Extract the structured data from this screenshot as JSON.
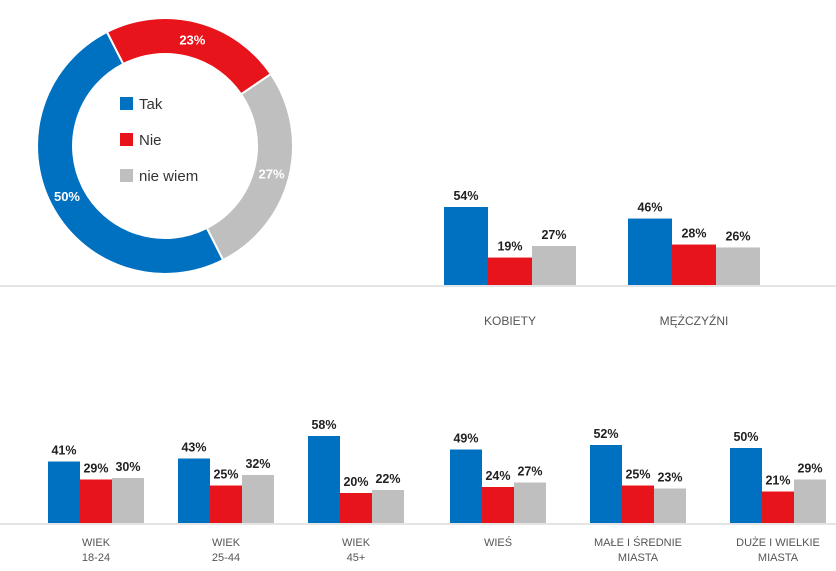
{
  "colors": {
    "tak": "#0070C0",
    "nie": "#E8141B",
    "nie_wiem": "#BFBFBF"
  },
  "chart_data": [
    {
      "type": "pie",
      "variant": "donut",
      "legend_placement": "center",
      "categories": [
        "Tak",
        "Nie",
        "nie wiem"
      ],
      "values": [
        50,
        23,
        27
      ],
      "value_labels": [
        "50%",
        "23%",
        "27%"
      ]
    },
    {
      "type": "bar",
      "series": [
        {
          "name": "Tak",
          "values": [
            54,
            46
          ],
          "labels": [
            "54%",
            "46%"
          ]
        },
        {
          "name": "Nie",
          "values": [
            19,
            28
          ],
          "labels": [
            "19%",
            "28%"
          ]
        },
        {
          "name": "nie wiem",
          "values": [
            27,
            26
          ],
          "labels": [
            "27%",
            "26%"
          ]
        }
      ],
      "categories": [
        [
          "KOBIETY"
        ],
        [
          "MĘŻCZYŹNI"
        ]
      ],
      "grid": false
    },
    {
      "type": "bar",
      "series": [
        {
          "name": "Tak",
          "values": [
            41,
            43,
            58,
            49,
            52,
            50
          ],
          "labels": [
            "41%",
            "43%",
            "58%",
            "49%",
            "52%",
            "50%"
          ]
        },
        {
          "name": "Nie",
          "values": [
            29,
            25,
            20,
            24,
            25,
            21
          ],
          "labels": [
            "29%",
            "25%",
            "20%",
            "24%",
            "25%",
            "21%"
          ]
        },
        {
          "name": "nie wiem",
          "values": [
            30,
            32,
            22,
            27,
            23,
            29
          ],
          "labels": [
            "30%",
            "32%",
            "22%",
            "27%",
            "23%",
            "29%"
          ]
        }
      ],
      "categories": [
        [
          "WIEK",
          "18-24"
        ],
        [
          "WIEK",
          "25-44"
        ],
        [
          "WIEK",
          "45+"
        ],
        [
          "WIEŚ"
        ],
        [
          "MAŁE I ŚREDNIE",
          "MIASTA"
        ],
        [
          "DUŻE I WIELKIE",
          "MIASTA"
        ]
      ],
      "grid": false
    }
  ]
}
